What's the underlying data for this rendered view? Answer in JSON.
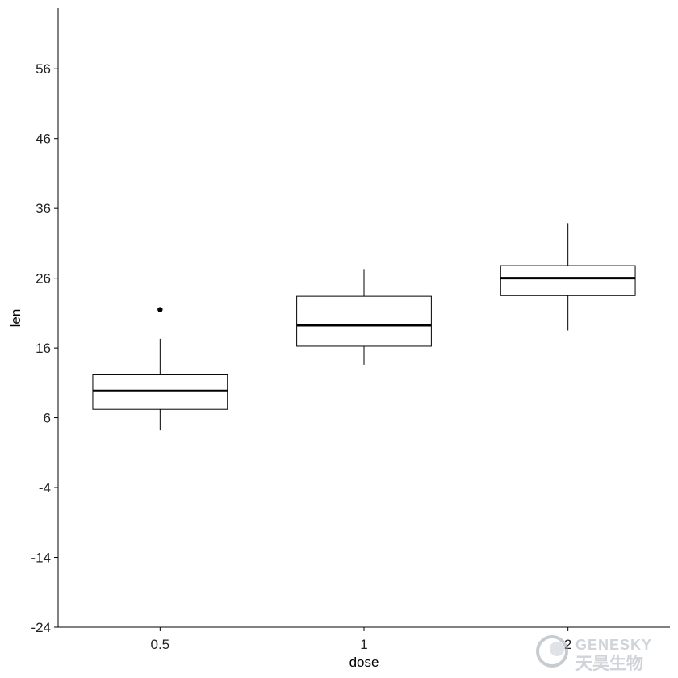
{
  "chart_data": {
    "type": "boxplot",
    "xlabel": "dose",
    "ylabel": "len",
    "categories": [
      "0.5",
      "1",
      "2"
    ],
    "ylim": [
      -24,
      64.7
    ],
    "yticks": [
      -24,
      -14,
      -4,
      6,
      16,
      26,
      36,
      46,
      56
    ],
    "grid": false,
    "legend": "none",
    "boxes": [
      {
        "category": "0.5",
        "whisker_low": 4.2,
        "q1": 7.2,
        "median": 9.85,
        "q3": 12.25,
        "whisker_high": 17.3,
        "outliers": [
          21.5
        ]
      },
      {
        "category": "1",
        "whisker_low": 13.6,
        "q1": 16.25,
        "median": 19.25,
        "q3": 23.4,
        "whisker_high": 27.3,
        "outliers": []
      },
      {
        "category": "2",
        "whisker_low": 18.5,
        "q1": 23.5,
        "median": 26.0,
        "q3": 27.8,
        "whisker_high": 33.9,
        "outliers": []
      }
    ]
  },
  "watermark": {
    "text_en": "GENESKY",
    "text_cn": "天昊生物"
  }
}
